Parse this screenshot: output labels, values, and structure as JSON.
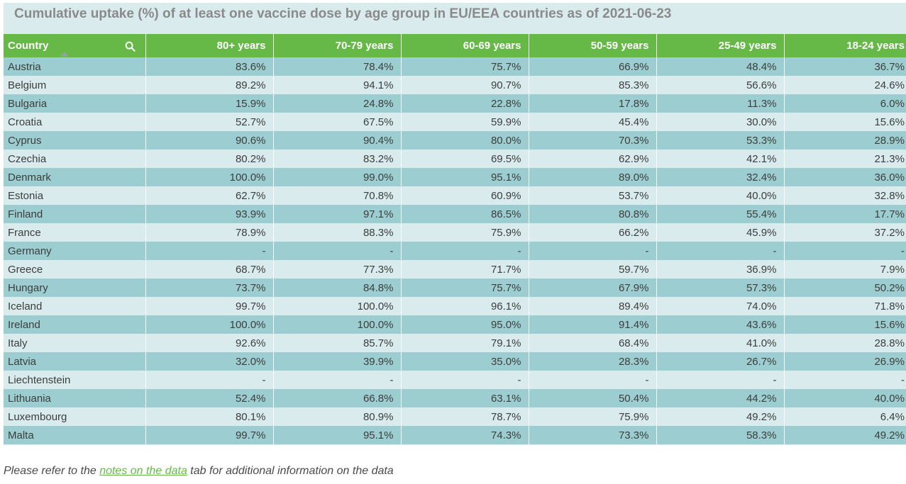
{
  "title": "Cumulative uptake (%) of at least one vaccine dose by age group in EU/EEA countries as of 2021-06-23",
  "columns": [
    "Country",
    "80+ years",
    "70-79 years",
    "60-69 years",
    "50-59 years",
    "25-49 years",
    "18-24 years"
  ],
  "icons": {
    "search": "search-icon",
    "sort": "sort-ascending-icon"
  },
  "colors": {
    "header": "#67b947",
    "row_dark": "#9ccdd0",
    "row_light": "#d9ebec",
    "link": "#67b947"
  },
  "rows": [
    [
      "Austria",
      "83.6%",
      "78.4%",
      "75.7%",
      "66.9%",
      "48.4%",
      "36.7%"
    ],
    [
      "Belgium",
      "89.2%",
      "94.1%",
      "90.7%",
      "85.3%",
      "56.6%",
      "24.6%"
    ],
    [
      "Bulgaria",
      "15.9%",
      "24.8%",
      "22.8%",
      "17.8%",
      "11.3%",
      "6.0%"
    ],
    [
      "Croatia",
      "52.7%",
      "67.5%",
      "59.9%",
      "45.4%",
      "30.0%",
      "15.6%"
    ],
    [
      "Cyprus",
      "90.6%",
      "90.4%",
      "80.0%",
      "70.3%",
      "53.3%",
      "28.9%"
    ],
    [
      "Czechia",
      "80.2%",
      "83.2%",
      "69.5%",
      "62.9%",
      "42.1%",
      "21.3%"
    ],
    [
      "Denmark",
      "100.0%",
      "99.0%",
      "95.1%",
      "89.0%",
      "32.4%",
      "36.0%"
    ],
    [
      "Estonia",
      "62.7%",
      "70.8%",
      "60.9%",
      "53.7%",
      "40.0%",
      "32.8%"
    ],
    [
      "Finland",
      "93.9%",
      "97.1%",
      "86.5%",
      "80.8%",
      "55.4%",
      "17.7%"
    ],
    [
      "France",
      "78.9%",
      "88.3%",
      "75.9%",
      "66.2%",
      "45.9%",
      "37.2%"
    ],
    [
      "Germany",
      "-",
      "-",
      "-",
      "-",
      "-",
      "-"
    ],
    [
      "Greece",
      "68.7%",
      "77.3%",
      "71.7%",
      "59.7%",
      "36.9%",
      "7.9%"
    ],
    [
      "Hungary",
      "73.7%",
      "84.8%",
      "75.7%",
      "67.9%",
      "57.3%",
      "50.2%"
    ],
    [
      "Iceland",
      "99.7%",
      "100.0%",
      "96.1%",
      "89.4%",
      "74.0%",
      "71.8%"
    ],
    [
      "Ireland",
      "100.0%",
      "100.0%",
      "95.0%",
      "91.4%",
      "43.6%",
      "15.6%"
    ],
    [
      "Italy",
      "92.6%",
      "85.7%",
      "79.1%",
      "68.4%",
      "41.0%",
      "28.8%"
    ],
    [
      "Latvia",
      "32.0%",
      "39.9%",
      "35.0%",
      "28.3%",
      "26.7%",
      "26.9%"
    ],
    [
      "Liechtenstein",
      "-",
      "-",
      "-",
      "-",
      "-",
      "-"
    ],
    [
      "Lithuania",
      "52.4%",
      "66.8%",
      "63.1%",
      "50.4%",
      "44.2%",
      "40.0%"
    ],
    [
      "Luxembourg",
      "80.1%",
      "80.9%",
      "78.7%",
      "75.9%",
      "49.2%",
      "6.4%"
    ],
    [
      "Malta",
      "99.7%",
      "95.1%",
      "74.3%",
      "73.3%",
      "58.3%",
      "49.2%"
    ]
  ],
  "footer": {
    "prefix": "Please refer to the ",
    "link": "notes on the data",
    "suffix": " tab for additional information on the data"
  }
}
